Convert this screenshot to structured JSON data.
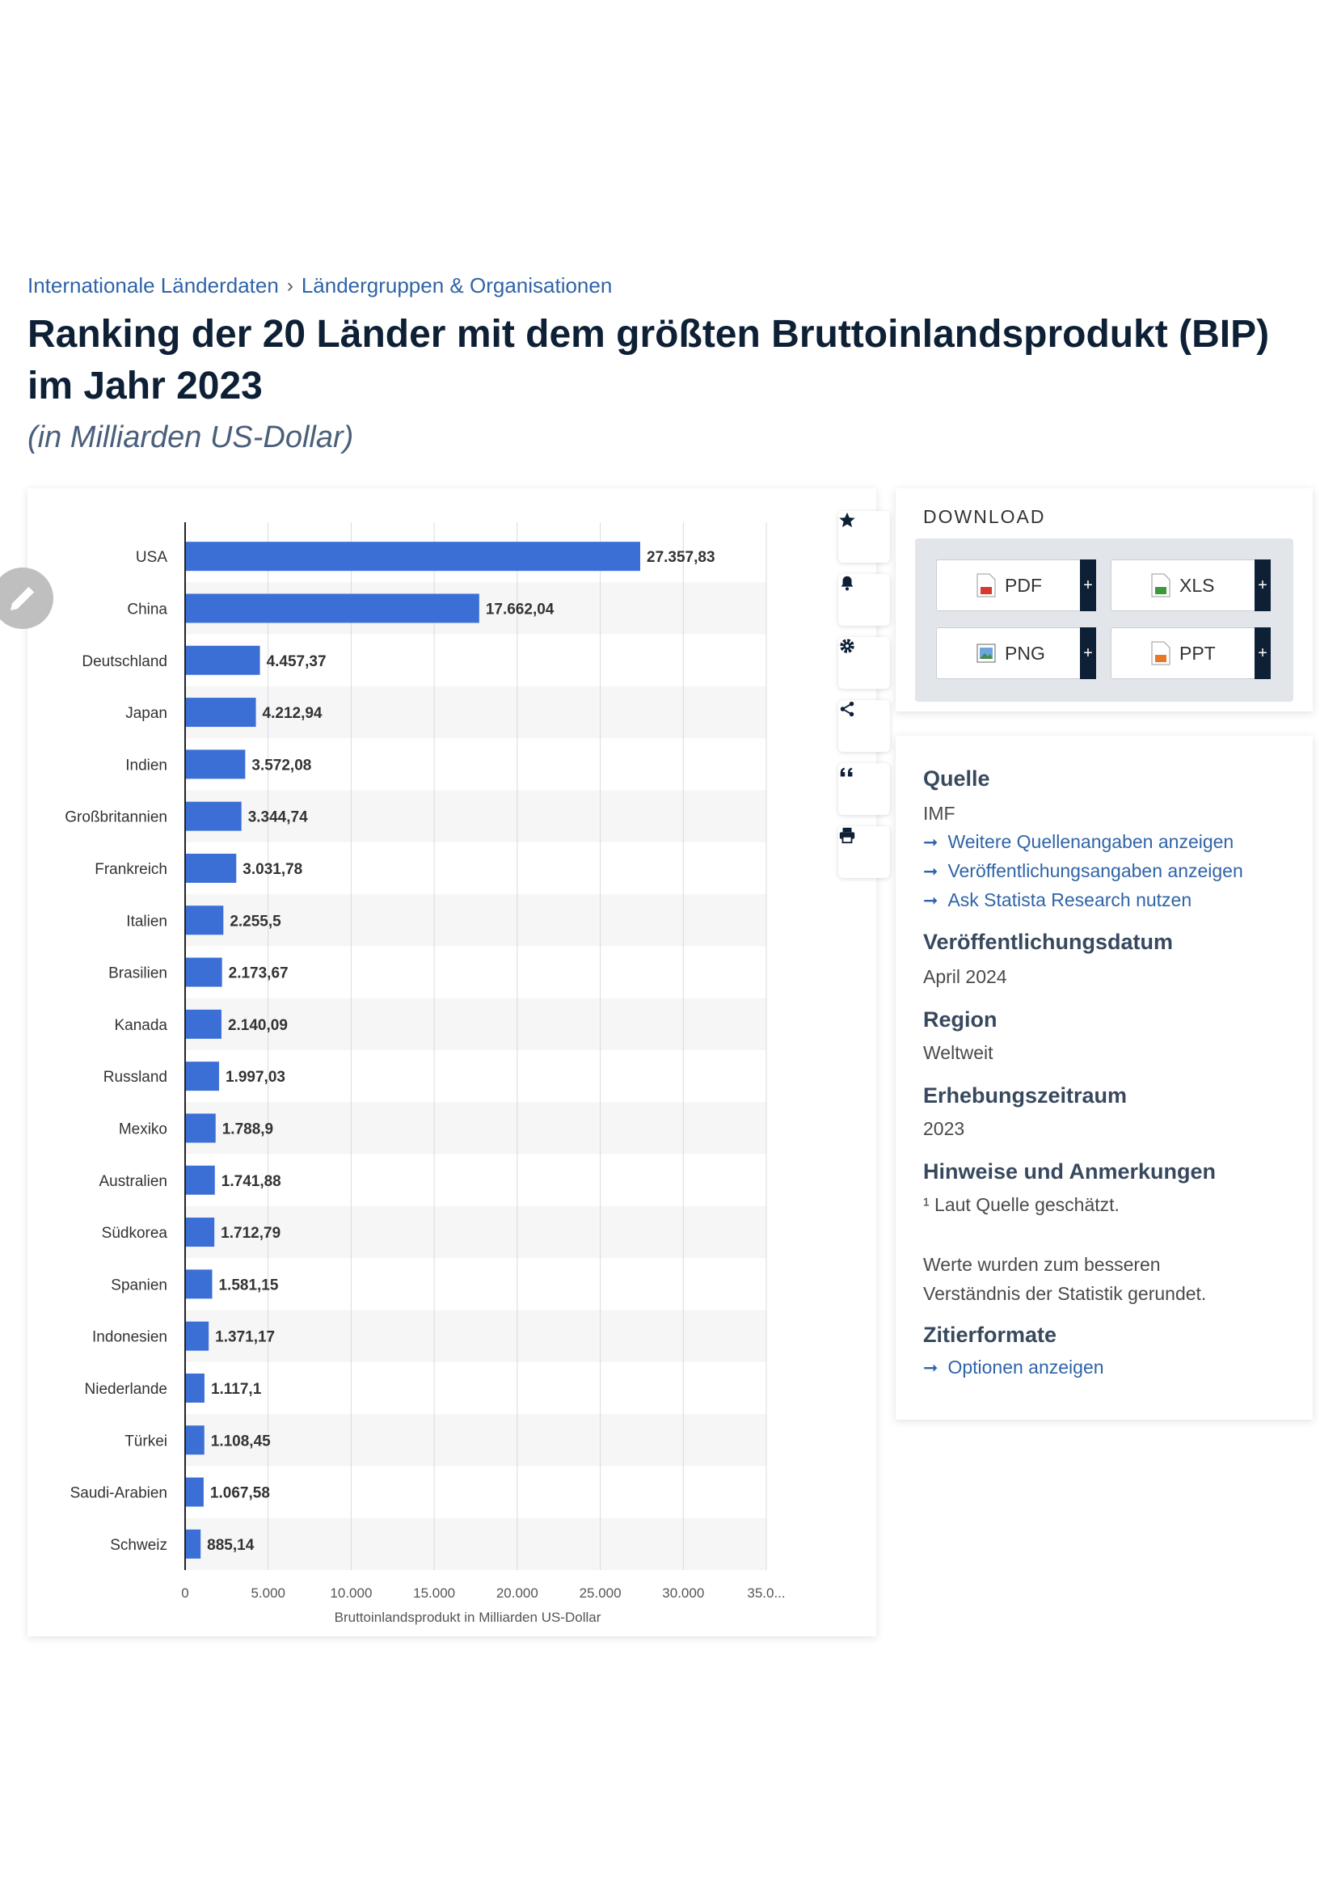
{
  "breadcrumb": {
    "item1": "Internationale Länderdaten",
    "separator": "›",
    "item2": "Ländergruppen & Organisationen"
  },
  "header": {
    "title": "Ranking der 20 Länder mit dem größten Bruttoinlandsprodukt (BIP) im Jahr 2023",
    "subtitle": "(in Milliarden US-Dollar)"
  },
  "colors": {
    "bar": "#3b6fd6",
    "accent": "#2f64a8",
    "dark": "#0e2036"
  },
  "icons": {
    "edit": "pencil-icon",
    "favorite": "star-icon",
    "alert": "bell-icon",
    "settings": "gear-icon",
    "share": "share-icon",
    "cite": "quote-icon",
    "print": "printer-icon"
  },
  "chart_data": {
    "type": "bar",
    "orientation": "horizontal",
    "categories": [
      "USA",
      "China",
      "Deutschland",
      "Japan",
      "Indien",
      "Großbritannien",
      "Frankreich",
      "Italien",
      "Brasilien",
      "Kanada",
      "Russland",
      "Mexiko",
      "Australien",
      "Südkorea",
      "Spanien",
      "Indonesien",
      "Niederlande",
      "Türkei",
      "Saudi-Arabien",
      "Schweiz"
    ],
    "values": [
      27357.83,
      17662.04,
      4457.37,
      4212.94,
      3572.08,
      3344.74,
      3031.78,
      2255.5,
      2173.67,
      2140.09,
      1997.03,
      1788.9,
      1741.88,
      1712.79,
      1581.15,
      1371.17,
      1117.1,
      1108.45,
      1067.58,
      885.14
    ],
    "value_labels": [
      "27.357,83",
      "17.662,04",
      "4.457,37",
      "4.212,94",
      "3.572,08",
      "3.344,74",
      "3.031,78",
      "2.255,5",
      "2.173,67",
      "2.140,09",
      "1.997,03",
      "1.788,9",
      "1.741,88",
      "1.712,79",
      "1.581,15",
      "1.371,17",
      "1.117,1",
      "1.108,45",
      "1.067,58",
      "885,14"
    ],
    "xlabel": "Bruttoinlandsprodukt in Milliarden US-Dollar",
    "xlim": [
      0,
      35000
    ],
    "x_ticks": [
      0,
      5000,
      10000,
      15000,
      20000,
      25000,
      30000,
      35000
    ],
    "x_tick_labels": [
      "0",
      "5.000",
      "10.000",
      "15.000",
      "20.000",
      "25.000",
      "30.000",
      "35.0..."
    ],
    "grid": true
  },
  "download": {
    "title": "DOWNLOAD",
    "buttons": [
      {
        "label": "PDF",
        "icon": "pdf-file-icon"
      },
      {
        "label": "XLS",
        "icon": "xls-file-icon"
      },
      {
        "label": "PNG",
        "icon": "png-file-icon"
      },
      {
        "label": "PPT",
        "icon": "ppt-file-icon"
      }
    ],
    "plus": "+"
  },
  "info": {
    "source_heading": "Quelle",
    "source_value": "IMF",
    "arrow": "➞",
    "links": [
      "Weitere Quellenangaben anzeigen",
      "Veröffentlichungsangaben anzeigen",
      "Ask Statista Research nutzen"
    ],
    "pubdate_heading": "Veröffentlichungsdatum",
    "pubdate_value": "April 2024",
    "region_heading": "Region",
    "region_value": "Weltweit",
    "period_heading": "Erhebungszeitraum",
    "period_value": "2023",
    "notes_heading": "Hinweise und Anmerkungen",
    "notes_line1": "¹ Laut Quelle geschätzt.",
    "notes_line2": "Werte wurden zum besseren",
    "notes_line3": "Verständnis der Statistik gerundet.",
    "cite_heading": "Zitierformate",
    "cite_link": "Optionen anzeigen"
  }
}
